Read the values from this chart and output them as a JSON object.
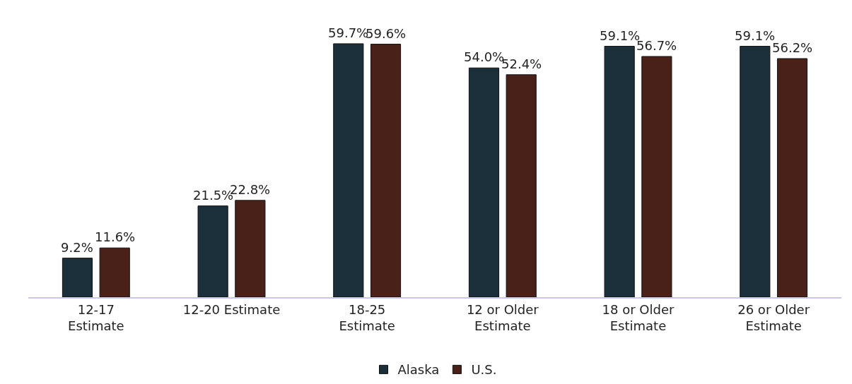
{
  "chart_data": {
    "type": "bar",
    "categories": [
      "12-17\nEstimate",
      "12-20 Estimate",
      "18-25\nEstimate",
      "12 or Older\nEstimate",
      "18 or Older\nEstimate",
      "26 or Older\nEstimate"
    ],
    "series": [
      {
        "name": "Alaska",
        "color": "#1b2f3a",
        "values": [
          9.2,
          21.5,
          59.7,
          54.0,
          59.1,
          59.1
        ],
        "value_labels": [
          "9.2%",
          "21.5%",
          "59.7%",
          "54.0%",
          "59.1%",
          "59.1%"
        ]
      },
      {
        "name": "U.S.",
        "color": "#4a2119",
        "values": [
          11.6,
          22.8,
          59.6,
          52.4,
          56.7,
          56.2
        ],
        "value_labels": [
          "11.6%",
          "22.8%",
          "59.6%",
          "52.4%",
          "56.7%",
          "56.2%"
        ]
      }
    ],
    "ylim": [
      0,
      70
    ],
    "tick_labels": "x",
    "grid": false,
    "legend": "bottom"
  }
}
